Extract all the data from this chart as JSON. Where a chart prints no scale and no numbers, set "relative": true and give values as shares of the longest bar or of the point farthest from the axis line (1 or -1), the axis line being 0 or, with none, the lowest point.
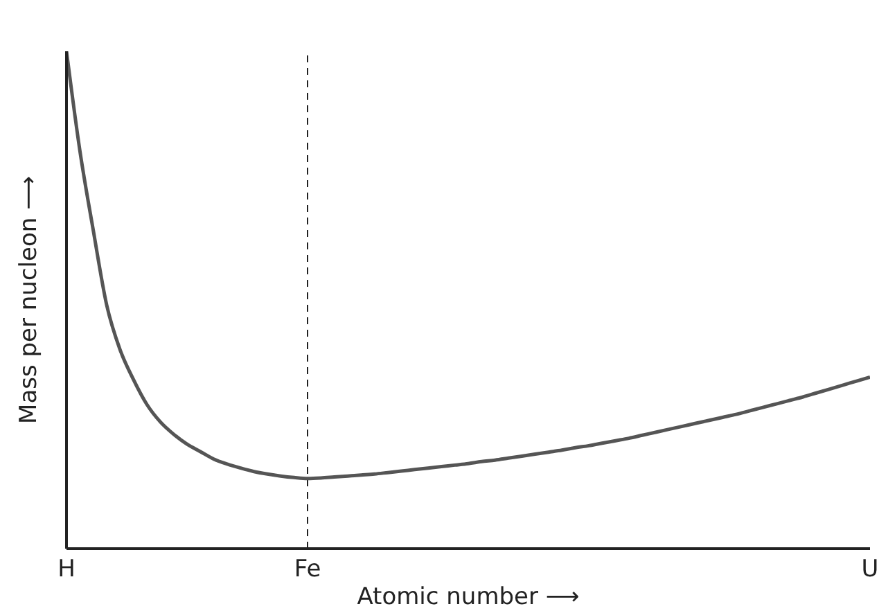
{
  "chart_data": {
    "type": "line",
    "relative": true,
    "xlabel": "Atomic number ⟶",
    "ylabel": "Mass per nucleon ⟶",
    "categories": [
      "H",
      null,
      null,
      null,
      null,
      null,
      null,
      null,
      null,
      null,
      null,
      null,
      null,
      null,
      null,
      null,
      null,
      null,
      "Fe",
      null,
      null,
      null,
      null,
      null,
      null,
      null,
      null,
      null,
      null,
      null,
      null,
      null,
      null,
      null,
      null,
      null,
      null,
      null,
      null,
      null,
      null,
      null,
      null,
      null,
      null,
      null,
      null,
      null,
      null,
      null,
      null,
      null,
      null,
      null,
      null,
      null,
      null,
      null,
      null,
      null,
      "U"
    ],
    "series": [
      {
        "color": "#555555",
        "values": [
          1.0,
          0.8,
          0.64,
          0.49,
          0.4,
          0.34,
          0.29,
          0.255,
          0.23,
          0.21,
          0.195,
          0.18,
          0.17,
          0.162,
          0.155,
          0.15,
          0.146,
          0.143,
          0.141,
          0.142,
          0.144,
          0.146,
          0.148,
          0.15,
          0.153,
          0.156,
          0.159,
          0.162,
          0.165,
          0.168,
          0.171,
          0.175,
          0.178,
          0.182,
          0.186,
          0.19,
          0.194,
          0.198,
          0.203,
          0.207,
          0.212,
          0.217,
          0.222,
          0.228,
          0.234,
          0.24,
          0.246,
          0.252,
          0.258,
          0.264,
          0.27,
          0.277,
          0.284,
          0.291,
          0.298,
          0.305,
          0.313,
          0.321,
          0.329,
          0.337,
          0.345
        ]
      }
    ],
    "ref_lines": [
      {
        "axis": "x",
        "value": "Fe",
        "color": "#222222",
        "line_style": "dashed"
      }
    ],
    "grid": false,
    "legend": false,
    "marker": "none",
    "line_style": "solid",
    "tick_labels": "x"
  }
}
